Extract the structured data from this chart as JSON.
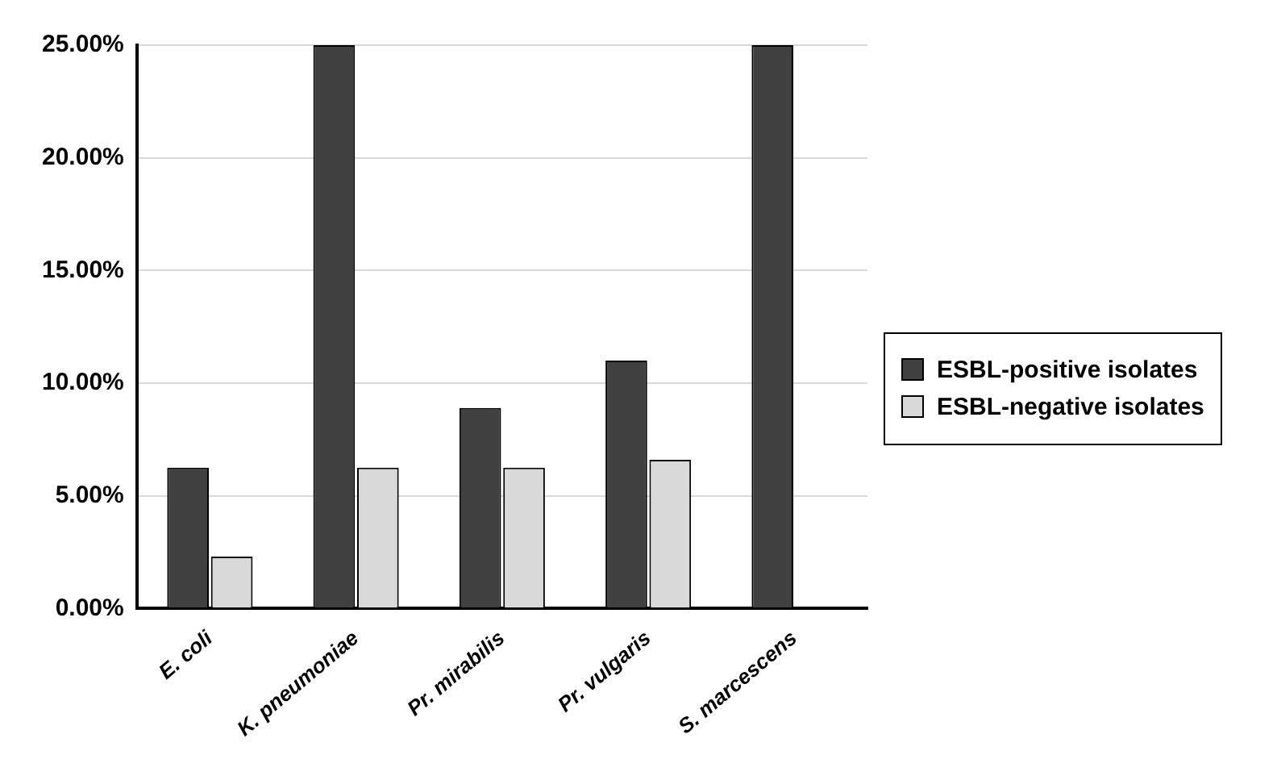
{
  "chart_data": {
    "type": "bar",
    "categories": [
      "E. coli",
      "K. pneumoniae",
      "Pr. mirabilis",
      "Pr. vulgaris",
      "S. marcescens"
    ],
    "series": [
      {
        "name": "ESBL-positive isolates",
        "color": "#404040",
        "values": [
          6.25,
          25,
          8.9,
          11,
          25
        ]
      },
      {
        "name": "ESBL-negative isolates",
        "color": "#d9d9d9",
        "values": [
          2.3,
          6.25,
          6.25,
          6.6,
          0
        ]
      }
    ],
    "ylim": [
      0,
      25
    ],
    "yticks": [
      {
        "value": 0,
        "label": "0.00%"
      },
      {
        "value": 5,
        "label": "5.00%"
      },
      {
        "value": 10,
        "label": "10.00%"
      },
      {
        "value": 15,
        "label": "15.00%"
      },
      {
        "value": 20,
        "label": "20.00%"
      },
      {
        "value": 25,
        "label": "25.00%"
      }
    ],
    "grid": "y",
    "legend": "right"
  }
}
